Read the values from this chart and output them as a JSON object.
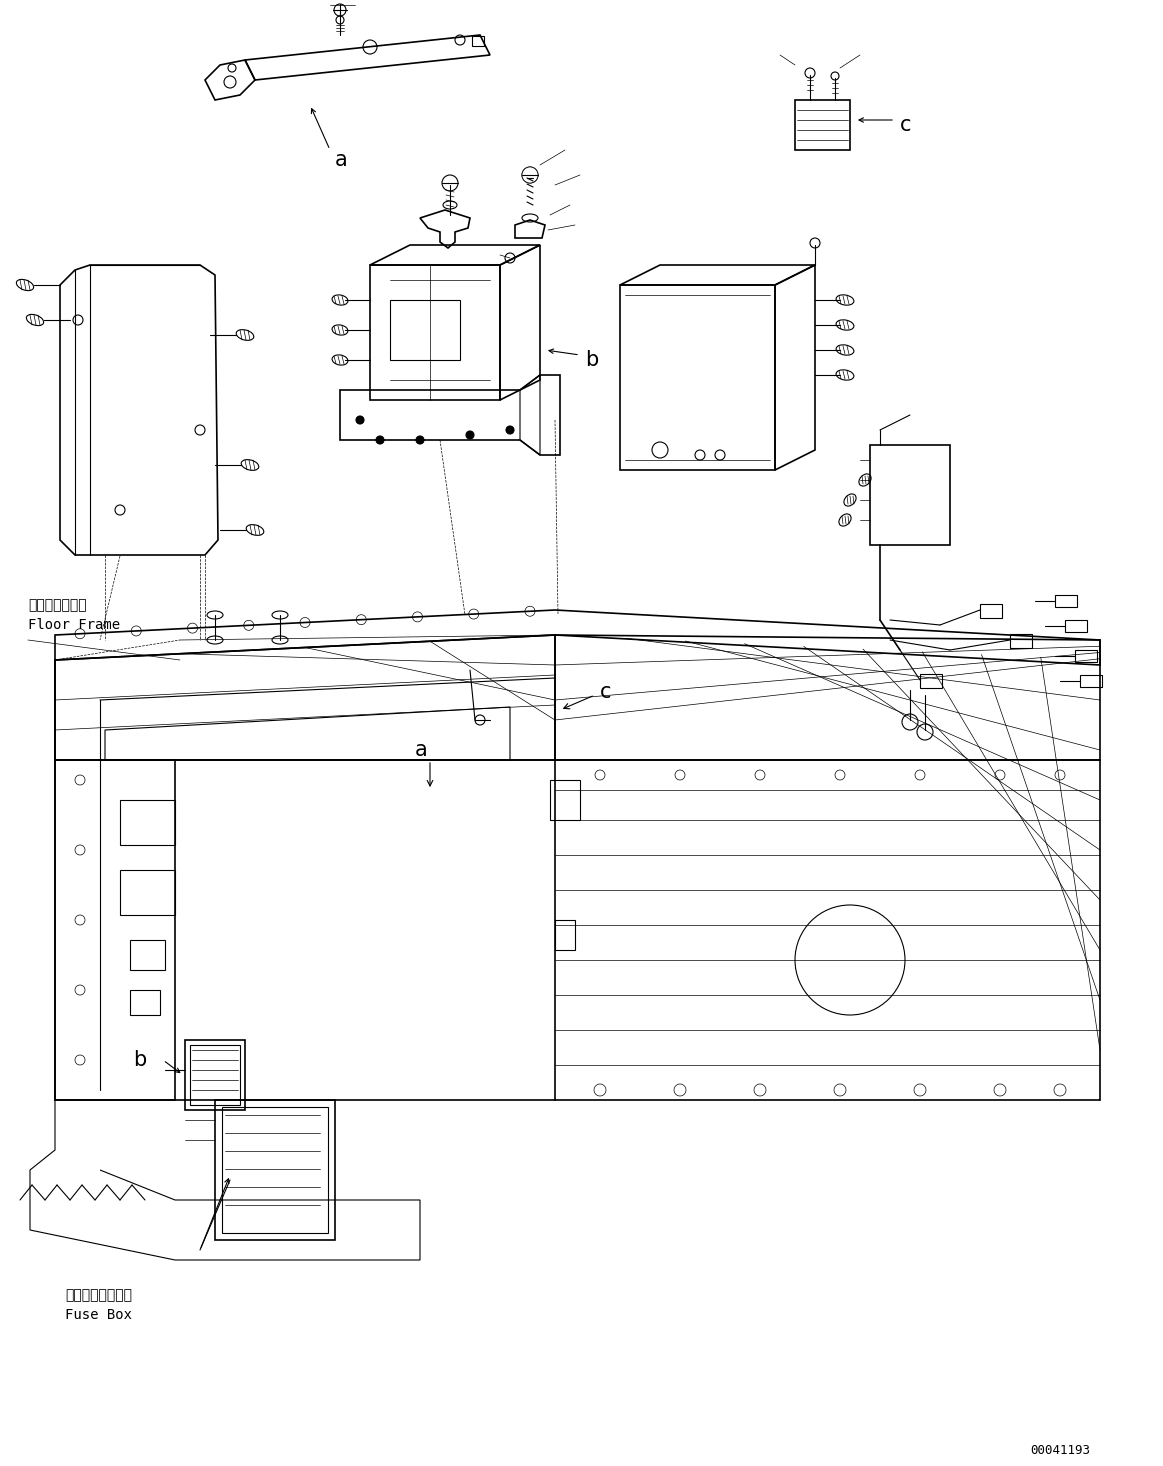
{
  "bg_color": "#ffffff",
  "line_color": "#000000",
  "fig_width": 11.63,
  "fig_height": 14.66,
  "dpi": 100,
  "label_a1": "a",
  "label_b1": "b",
  "label_c1": "c",
  "label_a2": "a",
  "label_b2": "b",
  "label_c2": "c",
  "label_floor_frame_jp": "フロアフレーム",
  "label_floor_frame_en": "Floor Frame",
  "label_fuse_box_jp": "フューズボックス",
  "label_fuse_box_en": "Fuse Box",
  "part_number": "00041193"
}
